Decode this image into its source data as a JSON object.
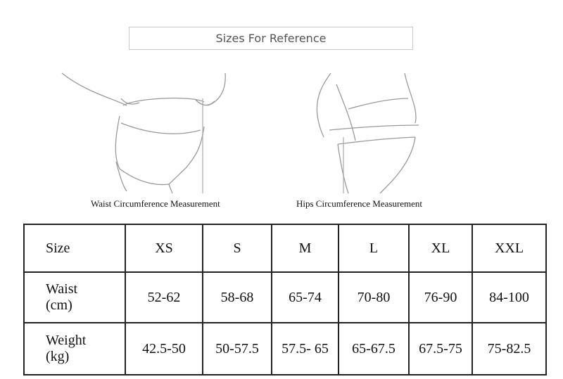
{
  "header": {
    "title": "Sizes For Reference"
  },
  "figures": [
    {
      "caption": "Waist Circumference Measurement"
    },
    {
      "caption": "Hips Circumference Measurement"
    }
  ],
  "table": {
    "rows": [
      [
        [
          "Size"
        ],
        "XS",
        "S",
        "M",
        "L",
        "XL",
        "XXL"
      ],
      [
        [
          "Waist",
          "(cm)"
        ],
        "52-62",
        "58-68",
        "65-74",
        "70-80",
        "76-90",
        "84-100"
      ],
      [
        [
          "Weight",
          "(kg)"
        ],
        "42.5-50",
        "50-57.5",
        "57.5- 65",
        "65-67.5",
        "67.5-75",
        "75-82.5"
      ]
    ]
  }
}
